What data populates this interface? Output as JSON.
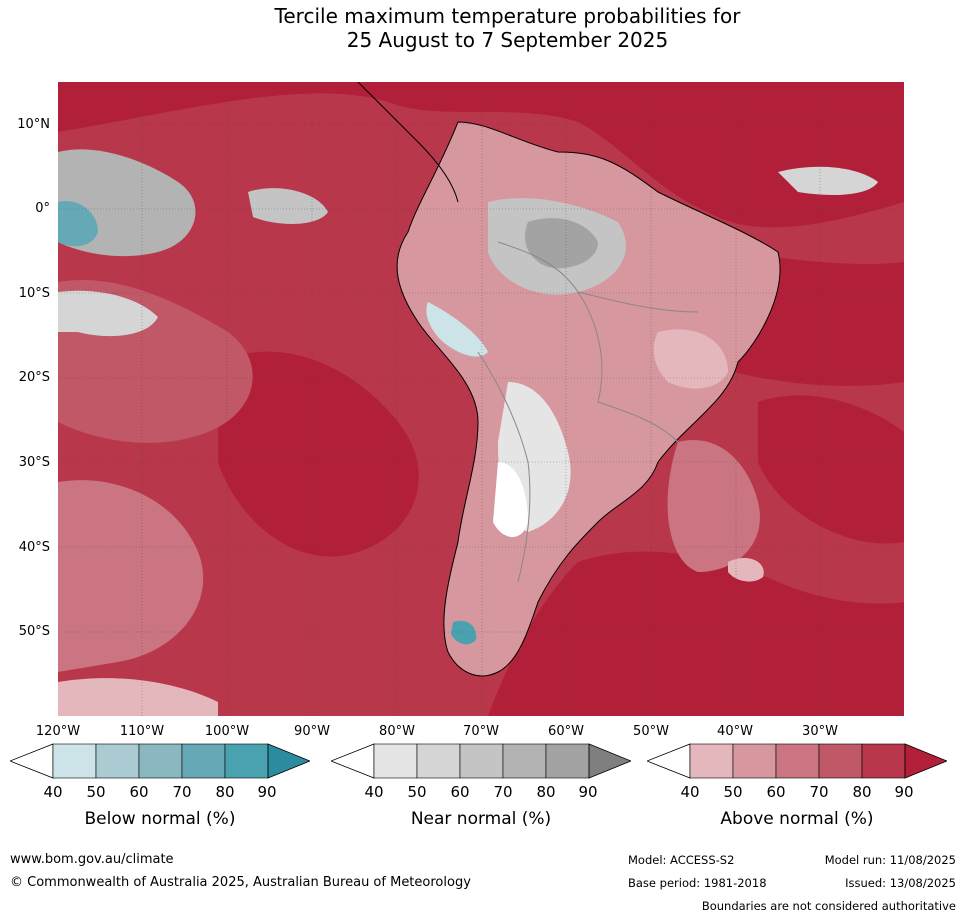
{
  "title": {
    "line1": "Tercile maximum temperature probabilities for",
    "line2": "25 August to 7 September 2025"
  },
  "lat_labels": [
    "10°N",
    "0°",
    "10°S",
    "20°S",
    "30°S",
    "40°S",
    "50°S"
  ],
  "lon_labels": [
    "120°W",
    "110°W",
    "100°W",
    "90°W",
    "80°W",
    "70°W",
    "60°W",
    "50°W",
    "40°W",
    "30°W"
  ],
  "colorbars": [
    {
      "name": "below",
      "title": "Below normal (%)",
      "ticks": [
        "40",
        "50",
        "60",
        "70",
        "80",
        "90"
      ],
      "colors": [
        "#ffffff",
        "#cce3e8",
        "#a9cbd1",
        "#8ab8c1",
        "#66a9b6",
        "#4aa2b1",
        "#2b8c9f"
      ]
    },
    {
      "name": "near",
      "title": "Near normal (%)",
      "ticks": [
        "40",
        "50",
        "60",
        "70",
        "80",
        "90"
      ],
      "colors": [
        "#ffffff",
        "#e5e5e5",
        "#d5d5d5",
        "#c4c4c4",
        "#b3b3b3",
        "#a3a3a3",
        "#7f7f7f"
      ]
    },
    {
      "name": "above",
      "title": "Above normal (%)",
      "ticks": [
        "40",
        "50",
        "60",
        "70",
        "80",
        "90"
      ],
      "colors": [
        "#ffffff",
        "#e4b7bd",
        "#d7979f",
        "#ca7581",
        "#c05867",
        "#b8374a",
        "#b21f38"
      ]
    }
  ],
  "footer": {
    "website": "www.bom.gov.au/climate",
    "copyright": "© Commonwealth of Australia 2025, Australian Bureau of Meteorology",
    "model": "Model: ACCESS-S2",
    "base_period": "Base period: 1981-2018",
    "model_run": "Model run: 11/08/2025",
    "issued": "Issued: 13/08/2025",
    "disclaimer": "Boundaries are not considered authoritative"
  }
}
